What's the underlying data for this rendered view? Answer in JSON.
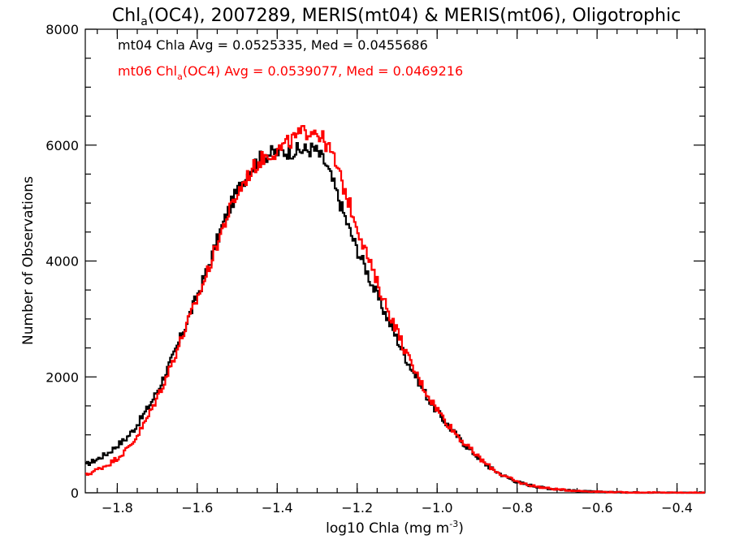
{
  "chart_data": {
    "type": "line",
    "step": true,
    "title": {
      "prefix": "Chl",
      "sub": "a",
      "suffix": "(OC4), 2007289, MERIS(mt04) & MERIS(mt06), Oligotrophic"
    },
    "xlabel": {
      "prefix": "log10 Chla (mg m",
      "sup": "-3",
      "suffix": ")"
    },
    "ylabel": "Number of Observations",
    "xlim": [
      -1.88,
      -0.33
    ],
    "ylim": [
      0,
      8000
    ],
    "xticks": [
      -1.8,
      -1.6,
      -1.4,
      -1.2,
      -1.0,
      -0.8,
      -0.6,
      -0.4
    ],
    "xtick_labels": [
      "−1.8",
      "−1.6",
      "−1.4",
      "−1.2",
      "−1.0",
      "−0.8",
      "−0.6",
      "−0.4"
    ],
    "yticks": [
      0,
      2000,
      4000,
      6000,
      8000
    ],
    "ytick_labels": [
      "0",
      "2000",
      "4000",
      "6000",
      "8000"
    ],
    "annotations": [
      {
        "color": "#000000",
        "prefix": "mt04 Chla Avg = 0.0525335, Med = 0.0455686"
      },
      {
        "color": "#ff0000",
        "prefix": "mt06 Chl",
        "sub": "a",
        "suffix": "(OC4) Avg = 0.0539077, Med = 0.0469216"
      }
    ],
    "series": [
      {
        "color": "#000000",
        "x": [
          -1.88,
          -1.85,
          -1.82,
          -1.8,
          -1.78,
          -1.76,
          -1.74,
          -1.72,
          -1.7,
          -1.68,
          -1.66,
          -1.64,
          -1.62,
          -1.6,
          -1.58,
          -1.56,
          -1.54,
          -1.52,
          -1.5,
          -1.48,
          -1.46,
          -1.44,
          -1.42,
          -1.4,
          -1.38,
          -1.36,
          -1.34,
          -1.32,
          -1.31,
          -1.3,
          -1.28,
          -1.26,
          -1.24,
          -1.22,
          -1.2,
          -1.18,
          -1.16,
          -1.14,
          -1.12,
          -1.1,
          -1.08,
          -1.06,
          -1.04,
          -1.02,
          -1.0,
          -0.98,
          -0.96,
          -0.94,
          -0.92,
          -0.9,
          -0.88,
          -0.86,
          -0.84,
          -0.82,
          -0.8,
          -0.78,
          -0.76,
          -0.74,
          -0.72,
          -0.7,
          -0.68,
          -0.66,
          -0.64,
          -0.62,
          -0.6,
          -0.58,
          -0.56,
          -0.54,
          -0.52,
          -0.5,
          -0.48,
          -0.46,
          -0.44,
          -0.42,
          -0.4,
          -0.38,
          -0.36,
          -0.34
        ],
        "values": [
          480,
          580,
          700,
          820,
          920,
          1080,
          1280,
          1500,
          1750,
          2050,
          2350,
          2700,
          3050,
          3400,
          3750,
          4150,
          4550,
          4900,
          5200,
          5450,
          5650,
          5780,
          5850,
          5880,
          5890,
          5900,
          5910,
          5920,
          5940,
          5880,
          5700,
          5350,
          4950,
          4550,
          4200,
          3900,
          3550,
          3250,
          2950,
          2650,
          2350,
          2100,
          1850,
          1600,
          1400,
          1220,
          1060,
          900,
          760,
          630,
          500,
          400,
          320,
          250,
          190,
          150,
          120,
          95,
          75,
          60,
          48,
          38,
          30,
          24,
          19,
          15,
          12,
          9,
          7,
          6,
          5,
          4,
          3,
          3,
          2,
          2,
          1,
          1
        ]
      },
      {
        "color": "#ff0000",
        "x": [
          -1.88,
          -1.85,
          -1.82,
          -1.8,
          -1.78,
          -1.76,
          -1.74,
          -1.72,
          -1.7,
          -1.68,
          -1.66,
          -1.64,
          -1.62,
          -1.6,
          -1.58,
          -1.56,
          -1.54,
          -1.52,
          -1.5,
          -1.48,
          -1.46,
          -1.44,
          -1.42,
          -1.4,
          -1.38,
          -1.36,
          -1.34,
          -1.32,
          -1.31,
          -1.3,
          -1.28,
          -1.26,
          -1.24,
          -1.22,
          -1.2,
          -1.18,
          -1.16,
          -1.14,
          -1.12,
          -1.1,
          -1.08,
          -1.06,
          -1.04,
          -1.02,
          -1.0,
          -0.98,
          -0.96,
          -0.94,
          -0.92,
          -0.9,
          -0.88,
          -0.86,
          -0.84,
          -0.82,
          -0.8,
          -0.78,
          -0.76,
          -0.74,
          -0.72,
          -0.7,
          -0.68,
          -0.66,
          -0.64,
          -0.62,
          -0.6,
          -0.58,
          -0.56,
          -0.54,
          -0.52,
          -0.5,
          -0.48,
          -0.46,
          -0.44,
          -0.42,
          -0.4,
          -0.38,
          -0.36,
          -0.34
        ],
        "values": [
          300,
          400,
          500,
          600,
          720,
          880,
          1100,
          1350,
          1650,
          1950,
          2300,
          2650,
          3000,
          3350,
          3700,
          4100,
          4500,
          4850,
          5150,
          5400,
          5600,
          5750,
          5850,
          5900,
          6000,
          6100,
          6200,
          6250,
          6280,
          6220,
          6050,
          5800,
          5400,
          5000,
          4600,
          4200,
          3800,
          3450,
          3100,
          2800,
          2450,
          2150,
          1900,
          1650,
          1450,
          1250,
          1080,
          920,
          770,
          640,
          510,
          410,
          320,
          250,
          190,
          150,
          120,
          95,
          75,
          60,
          48,
          38,
          30,
          24,
          19,
          15,
          12,
          9,
          7,
          6,
          5,
          4,
          3,
          3,
          2,
          2,
          1,
          1
        ]
      }
    ]
  }
}
